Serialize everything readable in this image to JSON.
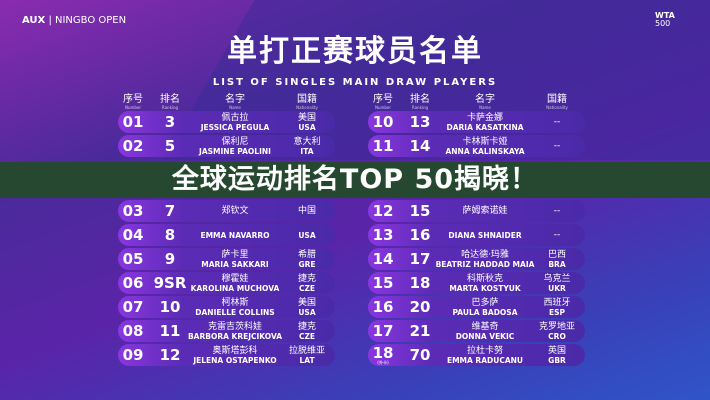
{
  "header": {
    "brand": "AUX",
    "event": "NINGBO OPEN",
    "wta_logo": "WTA",
    "wta_level": "500",
    "title": "单打正赛球员名单",
    "subtitle": "LIST OF SINGLES MAIN DRAW PLAYERS"
  },
  "columns": [
    {
      "cn": "序号",
      "en": "Number"
    },
    {
      "cn": "排名",
      "en": "Ranking"
    },
    {
      "cn": "名字",
      "en": "Name"
    },
    {
      "cn": "国籍",
      "en": "Nationality"
    }
  ],
  "left_players": [
    {
      "no": "01",
      "rank": "3",
      "cn": "佩古拉",
      "en": "JESSICA PEGULA",
      "nat_cn": "美国",
      "nat": "USA"
    },
    {
      "no": "02",
      "rank": "5",
      "cn": "保利尼",
      "en": "JASMINE PAOLINI",
      "nat_cn": "意大利",
      "nat": "ITA"
    },
    {
      "no": "03",
      "rank": "7",
      "cn": "郑钦文",
      "en": "",
      "nat_cn": "中国",
      "nat": ""
    },
    {
      "no": "04",
      "rank": "8",
      "cn": "",
      "en": "EMMA NAVARRO",
      "nat_cn": "",
      "nat": "USA"
    },
    {
      "no": "05",
      "rank": "9",
      "cn": "萨卡里",
      "en": "MARIA SAKKARI",
      "nat_cn": "希腊",
      "nat": "GRE"
    },
    {
      "no": "06",
      "rank": "9SR",
      "cn": "穆霍娃",
      "en": "KAROLINA MUCHOVA",
      "nat_cn": "捷克",
      "nat": "CZE"
    },
    {
      "no": "07",
      "rank": "10",
      "cn": "柯林斯",
      "en": "DANIELLE COLLINS",
      "nat_cn": "美国",
      "nat": "USA"
    },
    {
      "no": "08",
      "rank": "11",
      "cn": "克雷吉茨科娃",
      "en": "BARBORA KREJCIKOVA",
      "nat_cn": "捷克",
      "nat": "CZE"
    },
    {
      "no": "09",
      "rank": "12",
      "cn": "奥斯塔彭科",
      "en": "JELENA OSTAPENKO",
      "nat_cn": "拉脱维亚",
      "nat": "LAT"
    }
  ],
  "right_players": [
    {
      "no": "10",
      "rank": "13",
      "cn": "卡萨金娜",
      "en": "DARIA KASATKINA",
      "nat_cn": "--",
      "nat": ""
    },
    {
      "no": "11",
      "rank": "14",
      "cn": "卡林斯卡娅",
      "en": "ANNA KALINSKAYA",
      "nat_cn": "--",
      "nat": ""
    },
    {
      "no": "12",
      "rank": "15",
      "cn": "萨姆索诺娃",
      "en": "",
      "nat_cn": "--",
      "nat": ""
    },
    {
      "no": "13",
      "rank": "16",
      "cn": "",
      "en": "DIANA SHNAIDER",
      "nat_cn": "--",
      "nat": ""
    },
    {
      "no": "14",
      "rank": "17",
      "cn": "哈达德·玛雅",
      "en": "BEATRIZ HADDAD MAIA",
      "nat_cn": "巴西",
      "nat": "BRA"
    },
    {
      "no": "15",
      "rank": "18",
      "cn": "科斯秋克",
      "en": "MARTA KOSTYUK",
      "nat_cn": "乌克兰",
      "nat": "UKR"
    },
    {
      "no": "16",
      "rank": "20",
      "cn": "巴多萨",
      "en": "PAULA BADOSA",
      "nat_cn": "西班牙",
      "nat": "ESP"
    },
    {
      "no": "17",
      "rank": "21",
      "cn": "维基奇",
      "en": "DONNA VEKIC",
      "nat_cn": "克罗地亚",
      "nat": "CRO"
    },
    {
      "no": "18",
      "no_note": "(外卡)",
      "rank": "70",
      "cn": "拉杜卡努",
      "en": "EMMA RADUCANU",
      "nat_cn": "英国",
      "nat": "GBR"
    }
  ],
  "overlay": {
    "text": "全球运动排名TOP 50揭晓！",
    "band_color": "#264830"
  }
}
